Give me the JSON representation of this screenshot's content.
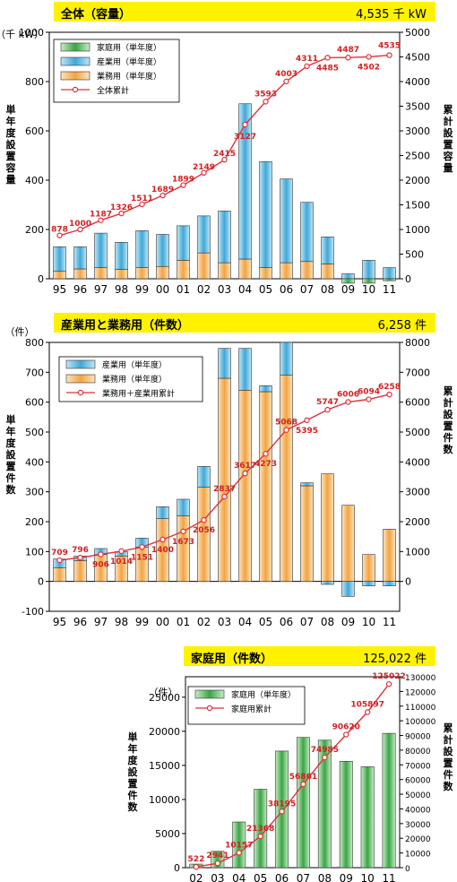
{
  "colors": {
    "banner": "#fff200",
    "residential": "#3aa545",
    "industrial": "#3fa8d8",
    "commercial": "#f2a443",
    "cumulative": "#e0303a"
  },
  "charts": [
    {
      "banner_title": "全体（容量）",
      "banner_total": "4,535 千 kW",
      "left_unit": "（千 kW）",
      "left_axis_title": "単年度設置容量",
      "right_axis_title": "累計設置容量"
    },
    {
      "banner_title": "産業用と業務用（件数）",
      "banner_total": "6,258 件",
      "left_unit": "（件）",
      "left_axis_title": "単年度設置件数",
      "right_axis_title": "累計設置件数"
    },
    {
      "banner_title": "家庭用（件数）",
      "banner_total": "125,022 件",
      "left_unit": "（件）",
      "left_axis_title": "単年度設置件数",
      "right_axis_title": "累計設置件数"
    }
  ],
  "chart_data": [
    {
      "type": "bar",
      "stacked": true,
      "categories": [
        "95",
        "96",
        "97",
        "98",
        "99",
        "00",
        "01",
        "02",
        "03",
        "04",
        "05",
        "06",
        "07",
        "08",
        "09",
        "10",
        "11"
      ],
      "ylim": [
        0,
        1000
      ],
      "yticks": [
        0,
        200,
        400,
        600,
        800,
        1000
      ],
      "y2lim": [
        0,
        5000
      ],
      "y2ticks": [
        0,
        500,
        1000,
        1500,
        2000,
        2500,
        3000,
        3500,
        4000,
        4500,
        5000
      ],
      "legend": "top-left",
      "series": [
        {
          "name": "家庭用（単年度）",
          "kind": "bar",
          "color": "residential",
          "values": [
            0,
            0,
            0,
            0,
            0,
            0,
            0,
            0,
            0,
            0,
            0,
            0,
            0,
            0,
            -18,
            -18,
            -8
          ]
        },
        {
          "name": "産業用（単年度）",
          "kind": "bar",
          "color": "industrial",
          "values": [
            100,
            90,
            140,
            110,
            150,
            130,
            140,
            150,
            210,
            630,
            430,
            340,
            240,
            110,
            20,
            75,
            45
          ]
        },
        {
          "name": "業務用（単年度）",
          "kind": "bar",
          "color": "commercial",
          "values": [
            30,
            40,
            45,
            38,
            45,
            50,
            75,
            105,
            65,
            80,
            45,
            65,
            70,
            60,
            0,
            0,
            0
          ]
        },
        {
          "name": "全体累計",
          "kind": "line",
          "axis": "right",
          "color": "cumulative",
          "values": [
            878,
            1000,
            1187,
            1326,
            1511,
            1689,
            1899,
            2149,
            2415,
            3127,
            3593,
            4003,
            4311,
            4485,
            4487,
            4502,
            4535
          ],
          "labels": [
            "878",
            "1000",
            "1187",
            "1326",
            "1511",
            "1689",
            "1899",
            "2149",
            "2415",
            "3127",
            "3593",
            "4003",
            "4311",
            "4485",
            "4487",
            "4502",
            "4535"
          ]
        }
      ],
      "extra_bar_tops": [
        0,
        0,
        0,
        0,
        0,
        0,
        0,
        0,
        0,
        0,
        0,
        0,
        0,
        0,
        0,
        0,
        0
      ]
    },
    {
      "type": "bar",
      "stacked": true,
      "categories": [
        "95",
        "96",
        "97",
        "98",
        "99",
        "00",
        "01",
        "02",
        "03",
        "04",
        "05",
        "06",
        "07",
        "08",
        "09",
        "10",
        "11"
      ],
      "ylim": [
        -100,
        800
      ],
      "yticks": [
        -100,
        0,
        100,
        200,
        300,
        400,
        500,
        600,
        700,
        800
      ],
      "y2lim": [
        -1000,
        8000
      ],
      "y2ticks": [
        0,
        1000,
        2000,
        3000,
        4000,
        5000,
        6000,
        7000,
        8000
      ],
      "legend": "top-left",
      "series": [
        {
          "name": "産業用（単年度）",
          "kind": "bar",
          "color": "industrial",
          "values": [
            30,
            15,
            20,
            15,
            30,
            40,
            55,
            70,
            100,
            140,
            20,
            110,
            10,
            -10,
            -50,
            -15,
            -15
          ]
        },
        {
          "name": "業務用（単年度）",
          "kind": "bar",
          "color": "commercial",
          "values": [
            45,
            70,
            90,
            85,
            115,
            210,
            220,
            315,
            680,
            640,
            635,
            690,
            320,
            360,
            255,
            90,
            175
          ]
        },
        {
          "name": "業務用＋産業用累計",
          "kind": "line",
          "axis": "right",
          "color": "cumulative",
          "values": [
            709,
            796,
            906,
            1014,
            1151,
            1400,
            1673,
            2056,
            2837,
            3617,
            4273,
            5068,
            5395,
            5747,
            6006,
            6094,
            6258
          ],
          "labels": [
            "709",
            "796",
            "906",
            "1014",
            "1151",
            "1400",
            "1673",
            "2056",
            "2837",
            "3617",
            "4273",
            "5068",
            "5395",
            "5747",
            "6006",
            "6094",
            "6258"
          ]
        }
      ]
    },
    {
      "type": "bar",
      "stacked": false,
      "categories": [
        "02",
        "03",
        "04",
        "05",
        "06",
        "07",
        "08",
        "09",
        "10",
        "11"
      ],
      "ylim": [
        0,
        28000
      ],
      "yticks": [
        0,
        5000,
        10000,
        15000,
        20000,
        25000
      ],
      "y2lim": [
        0,
        130000
      ],
      "y2ticks": [
        0,
        10000,
        20000,
        30000,
        40000,
        50000,
        60000,
        70000,
        80000,
        90000,
        100000,
        110000,
        120000,
        130000
      ],
      "legend": "top-left",
      "series": [
        {
          "name": "家庭用（単年度）",
          "kind": "bar",
          "color": "residential",
          "values": [
            520,
            2400,
            6700,
            11500,
            17100,
            19100,
            18700,
            15600,
            14800,
            19700
          ]
        },
        {
          "name": "家庭用累計",
          "kind": "line",
          "axis": "right",
          "color": "cumulative",
          "values": [
            522,
            2941,
            10157,
            21368,
            38195,
            56861,
            74985,
            90620,
            105897,
            125022
          ],
          "labels": [
            "522",
            "2941",
            "10157",
            "21368",
            "38195",
            "56861",
            "74985",
            "90620",
            "105897",
            "125022"
          ]
        }
      ]
    }
  ]
}
